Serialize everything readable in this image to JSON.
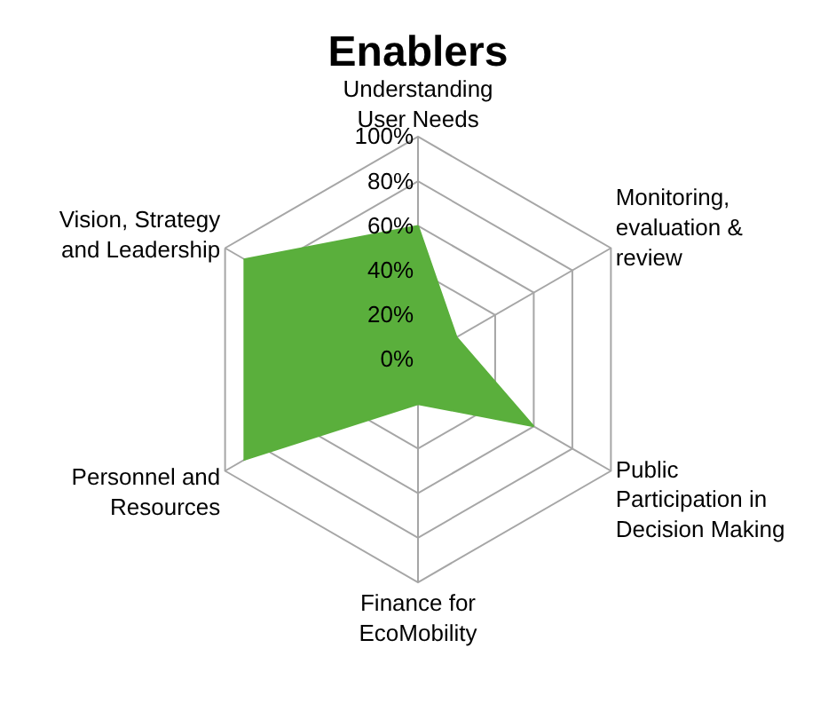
{
  "chart_data": {
    "type": "radar",
    "title": "Enablers",
    "categories": [
      "Understanding\nUser Needs",
      "Monitoring,\nevaluation &\nreview",
      "Public\nParticipation in\nDecision Making",
      "Finance for\nEcoMobility",
      "Personnel and\nResources",
      "Vision, Strategy\nand Leadership"
    ],
    "series": [
      {
        "color": "#5aaf3c",
        "values": [
          60,
          20,
          60,
          20,
          90,
          90
        ]
      }
    ],
    "ylim": [
      0,
      100
    ],
    "yticks": [
      {
        "value": 0,
        "label": "0%"
      },
      {
        "value": 20,
        "label": "20%"
      },
      {
        "value": 40,
        "label": "40%"
      },
      {
        "value": 60,
        "label": "60%"
      },
      {
        "value": 80,
        "label": "80%"
      },
      {
        "value": 100,
        "label": "100%"
      }
    ],
    "grid": true
  }
}
